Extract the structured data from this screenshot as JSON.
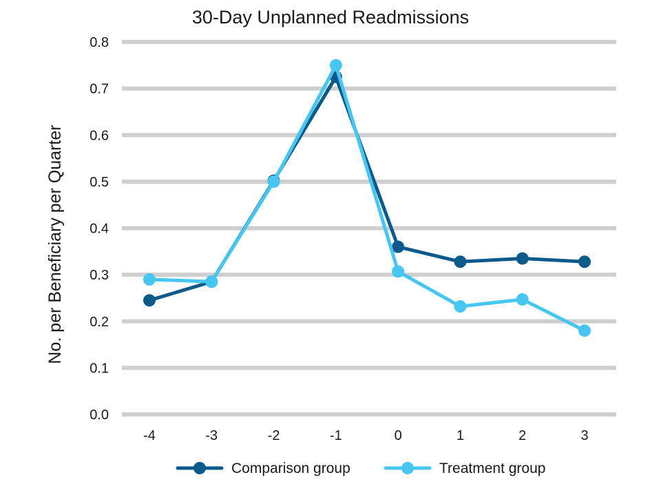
{
  "chart_data": {
    "type": "line",
    "title": "30-Day Unplanned Readmissions",
    "xlabel": "",
    "ylabel": "No. per Beneficiary per Quarter",
    "x": [
      -4,
      -3,
      -2,
      -1,
      0,
      1,
      2,
      3
    ],
    "x_tick_labels": [
      "-4",
      "-3",
      "-2",
      "-1",
      "0",
      "1",
      "2",
      "3"
    ],
    "ylim": [
      0,
      0.8
    ],
    "y_ticks": [
      0,
      0.1,
      0.2,
      0.3,
      0.4,
      0.5,
      0.6,
      0.7,
      0.8
    ],
    "y_tick_labels": [
      "0.0",
      "0.1",
      "0.2",
      "0.3",
      "0.4",
      "0.5",
      "0.6",
      "0.7",
      "0.8"
    ],
    "grid": true,
    "legend_position": "bottom",
    "series": [
      {
        "name": "Comparison group",
        "color": "#0b5a8c",
        "values": [
          0.245,
          0.285,
          0.502,
          0.725,
          0.36,
          0.328,
          0.335,
          0.328
        ]
      },
      {
        "name": "Treatment group",
        "color": "#47c6f2",
        "values": [
          0.29,
          0.285,
          0.5,
          0.75,
          0.307,
          0.232,
          0.247,
          0.18
        ]
      }
    ]
  }
}
